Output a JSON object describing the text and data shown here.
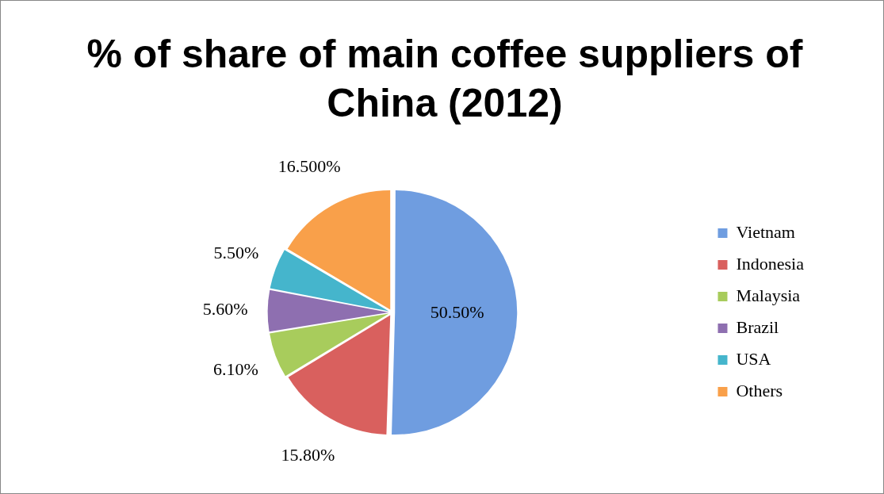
{
  "chart_data": {
    "type": "pie",
    "title": "% of share of main coffee suppliers of China (2012)",
    "categories": [
      "Vietnam",
      "Indonesia",
      "Malaysia",
      "Brazil",
      "USA",
      "Others"
    ],
    "values": [
      50.5,
      15.8,
      6.1,
      5.6,
      5.5,
      16.5
    ],
    "value_labels": [
      "50.50%",
      "15.80%",
      "6.10%",
      "5.60%",
      "5.50%",
      "16.500%"
    ],
    "colors": [
      "#6f9de0",
      "#d9605e",
      "#a8cc5c",
      "#8e6fb0",
      "#45b5cc",
      "#f9a04a"
    ],
    "legend": "right"
  }
}
